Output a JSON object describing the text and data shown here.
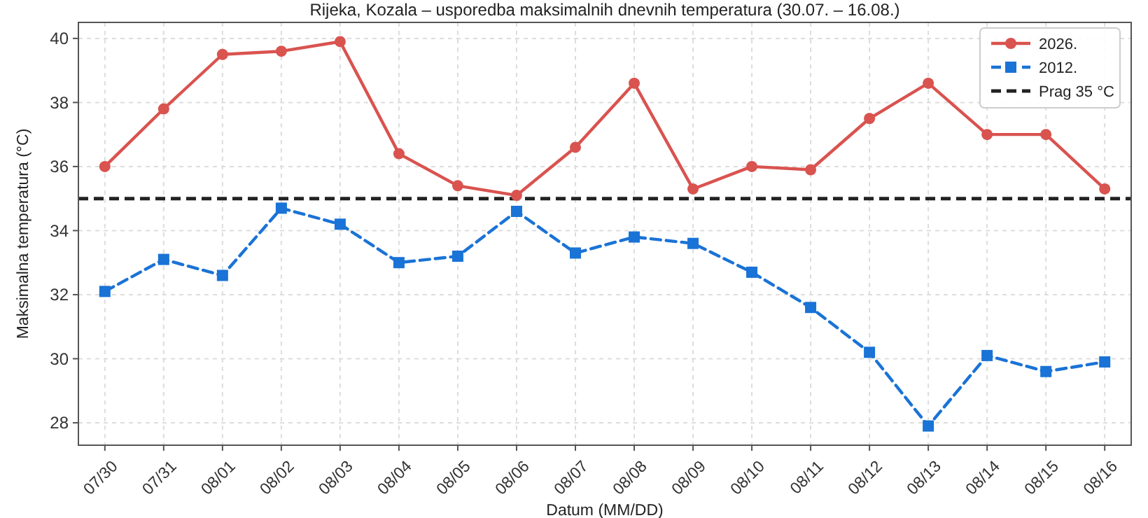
{
  "chart_data": {
    "type": "line",
    "title": "Rijeka, Kozala – usporedba maksimalnih dnevnih temperatura (30.07. – 16.08.)",
    "xlabel": "Datum (MM/DD)",
    "ylabel": "Maksimalna temperatura (°C)",
    "categories": [
      "07/30",
      "07/31",
      "08/01",
      "08/02",
      "08/03",
      "08/04",
      "08/05",
      "08/06",
      "08/07",
      "08/08",
      "08/09",
      "08/10",
      "08/11",
      "08/12",
      "08/13",
      "08/14",
      "08/15",
      "08/16"
    ],
    "series": [
      {
        "name": "2026.",
        "color": "#d9534f",
        "marker": "circle",
        "line_style": "solid",
        "values": [
          36.0,
          37.8,
          39.5,
          39.6,
          39.9,
          36.4,
          35.4,
          35.1,
          36.6,
          38.6,
          35.3,
          36.0,
          35.9,
          37.5,
          38.6,
          37.0,
          37.0,
          35.3
        ]
      },
      {
        "name": "2012.",
        "color": "#1a73d6",
        "marker": "square",
        "line_style": "dashed",
        "values": [
          32.1,
          33.1,
          32.6,
          34.7,
          34.2,
          33.0,
          33.2,
          34.6,
          33.3,
          33.8,
          33.6,
          32.7,
          31.6,
          30.2,
          27.9,
          30.1,
          29.6,
          29.9
        ]
      }
    ],
    "ref_lines": [
      {
        "axis": "y",
        "value": 35,
        "label": "Prag 35 °C",
        "color": "#222222",
        "line_style": "dashed"
      }
    ],
    "ylim": [
      27.3,
      40.5
    ],
    "yticks": [
      28,
      30,
      32,
      34,
      36,
      38,
      40
    ],
    "grid": true,
    "legend": "top right"
  }
}
